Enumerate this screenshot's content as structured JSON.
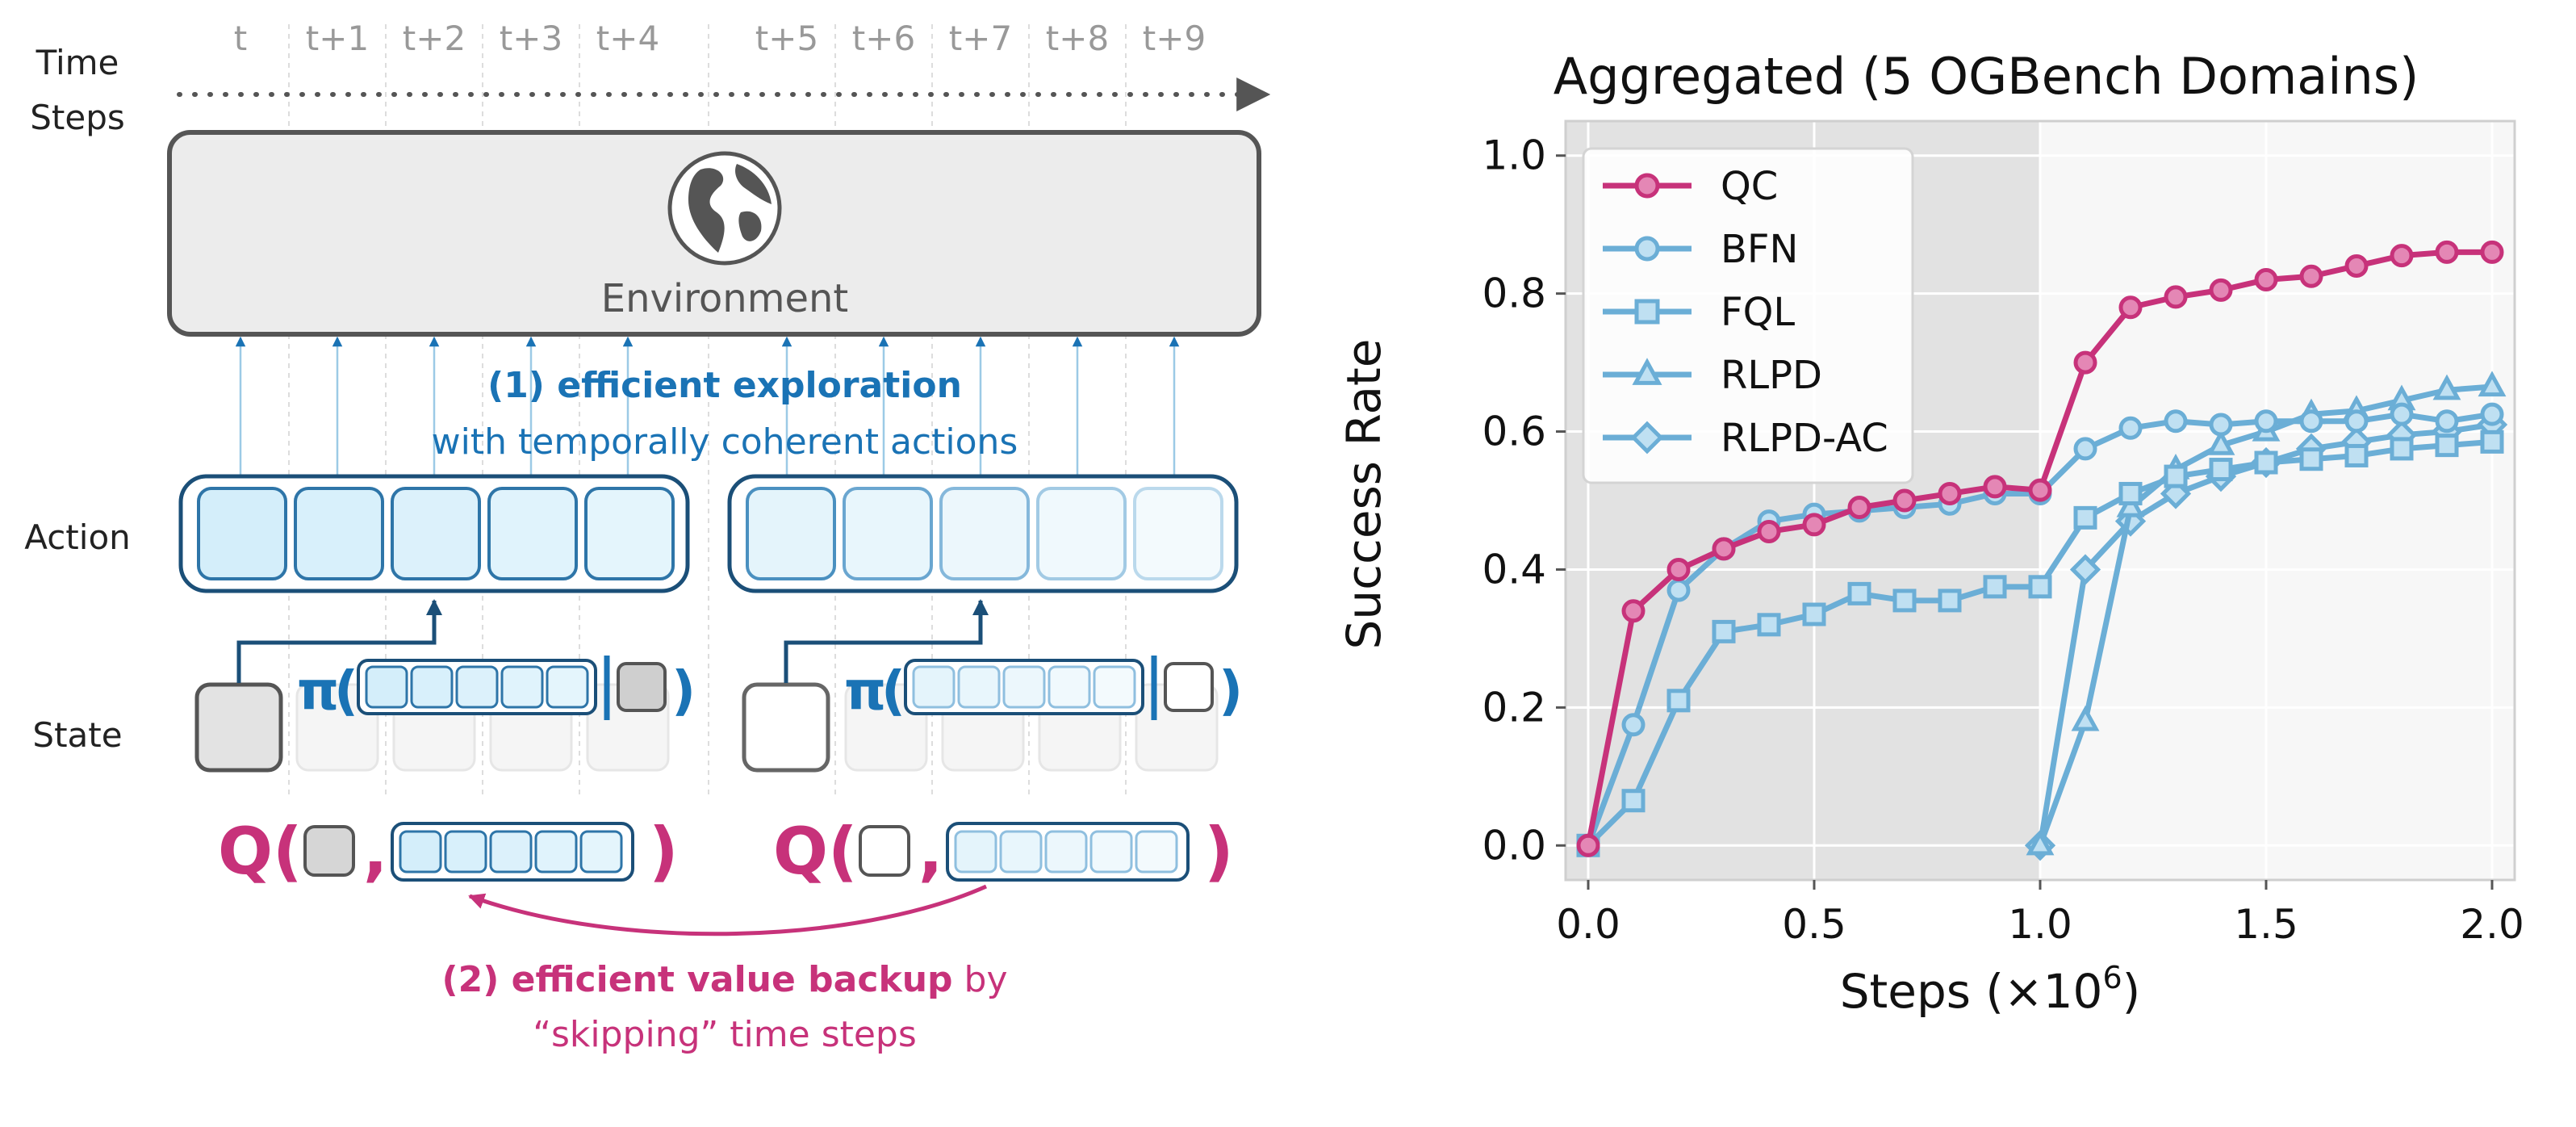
{
  "diagram": {
    "time_label_line1": "Time",
    "time_label_line2": "Steps",
    "time_steps": [
      "t",
      "t+1",
      "t+2",
      "t+3",
      "t+4",
      "t+5",
      "t+6",
      "t+7",
      "t+8",
      "t+9"
    ],
    "environment_label": "Environment",
    "exploration_title": "(1) efficient exploration",
    "exploration_sub": "with temporally coherent actions",
    "action_label": "Action",
    "state_label": "State",
    "pi_symbol": "π",
    "q_symbol": "Q",
    "backup_bold": "(2) efficient value backup",
    "backup_rest": " by",
    "backup_line2": "“skipping” time steps",
    "colors": {
      "blue": "#1a73b5",
      "dark_blue": "#1b4f78",
      "magenta": "#c7327a",
      "env_fill": "#ececec",
      "gray": "#666666"
    }
  },
  "chart_data": {
    "type": "line",
    "title": "Aggregated (5 OGBench Domains)",
    "xlabel": "Steps (×10",
    "xlabel_sup": "6",
    "xlabel_close": ")",
    "ylabel": "Success Rate",
    "xlim": [
      -0.05,
      2.05
    ],
    "ylim": [
      -0.05,
      1.05
    ],
    "xticks": [
      "0.0",
      "0.5",
      "1.0",
      "1.5",
      "2.0"
    ],
    "yticks": [
      "0.0",
      "0.2",
      "0.4",
      "0.6",
      "0.8",
      "1.0"
    ],
    "grid": true,
    "legend": "top-left",
    "offline_region": [
      0,
      1.0
    ],
    "series": [
      {
        "name": "QC",
        "color": "#c7327a",
        "marker": "circle",
        "x": [
          0.0,
          0.1,
          0.2,
          0.3,
          0.4,
          0.5,
          0.6,
          0.7,
          0.8,
          0.9,
          1.0,
          1.1,
          1.2,
          1.3,
          1.4,
          1.5,
          1.6,
          1.7,
          1.8,
          1.9,
          2.0
        ],
        "y": [
          0.0,
          0.34,
          0.4,
          0.43,
          0.455,
          0.465,
          0.49,
          0.5,
          0.51,
          0.52,
          0.515,
          0.7,
          0.78,
          0.795,
          0.805,
          0.82,
          0.825,
          0.84,
          0.855,
          0.86,
          0.86
        ]
      },
      {
        "name": "BFN",
        "color": "#6baed6",
        "marker": "circle",
        "x": [
          0.0,
          0.1,
          0.2,
          0.3,
          0.4,
          0.5,
          0.6,
          0.7,
          0.8,
          0.9,
          1.0,
          1.1,
          1.2,
          1.3,
          1.4,
          1.5,
          1.6,
          1.7,
          1.8,
          1.9,
          2.0
        ],
        "y": [
          0.0,
          0.175,
          0.37,
          0.43,
          0.47,
          0.48,
          0.485,
          0.49,
          0.495,
          0.51,
          0.51,
          0.575,
          0.605,
          0.615,
          0.61,
          0.615,
          0.615,
          0.615,
          0.625,
          0.615,
          0.625
        ]
      },
      {
        "name": "FQL",
        "color": "#6baed6",
        "marker": "square",
        "x": [
          0.0,
          0.1,
          0.2,
          0.3,
          0.4,
          0.5,
          0.6,
          0.7,
          0.8,
          0.9,
          1.0,
          1.1,
          1.2,
          1.3,
          1.4,
          1.5,
          1.6,
          1.7,
          1.8,
          1.9,
          2.0
        ],
        "y": [
          0.0,
          0.065,
          0.21,
          0.31,
          0.32,
          0.335,
          0.365,
          0.355,
          0.355,
          0.375,
          0.375,
          0.475,
          0.51,
          0.535,
          0.545,
          0.555,
          0.56,
          0.565,
          0.575,
          0.58,
          0.585
        ]
      },
      {
        "name": "RLPD",
        "color": "#6baed6",
        "marker": "triangle",
        "x": [
          1.0,
          1.1,
          1.2,
          1.3,
          1.4,
          1.5,
          1.6,
          1.7,
          1.8,
          1.9,
          2.0
        ],
        "y": [
          0.0,
          0.18,
          0.49,
          0.545,
          0.58,
          0.6,
          0.625,
          0.63,
          0.645,
          0.66,
          0.665
        ]
      },
      {
        "name": "RLPD-AC",
        "color": "#6baed6",
        "marker": "diamond",
        "x": [
          1.0,
          1.1,
          1.2,
          1.3,
          1.4,
          1.5,
          1.6,
          1.7,
          1.8,
          1.9,
          2.0
        ],
        "y": [
          0.0,
          0.4,
          0.47,
          0.51,
          0.535,
          0.555,
          0.575,
          0.585,
          0.595,
          0.6,
          0.61
        ]
      }
    ]
  }
}
